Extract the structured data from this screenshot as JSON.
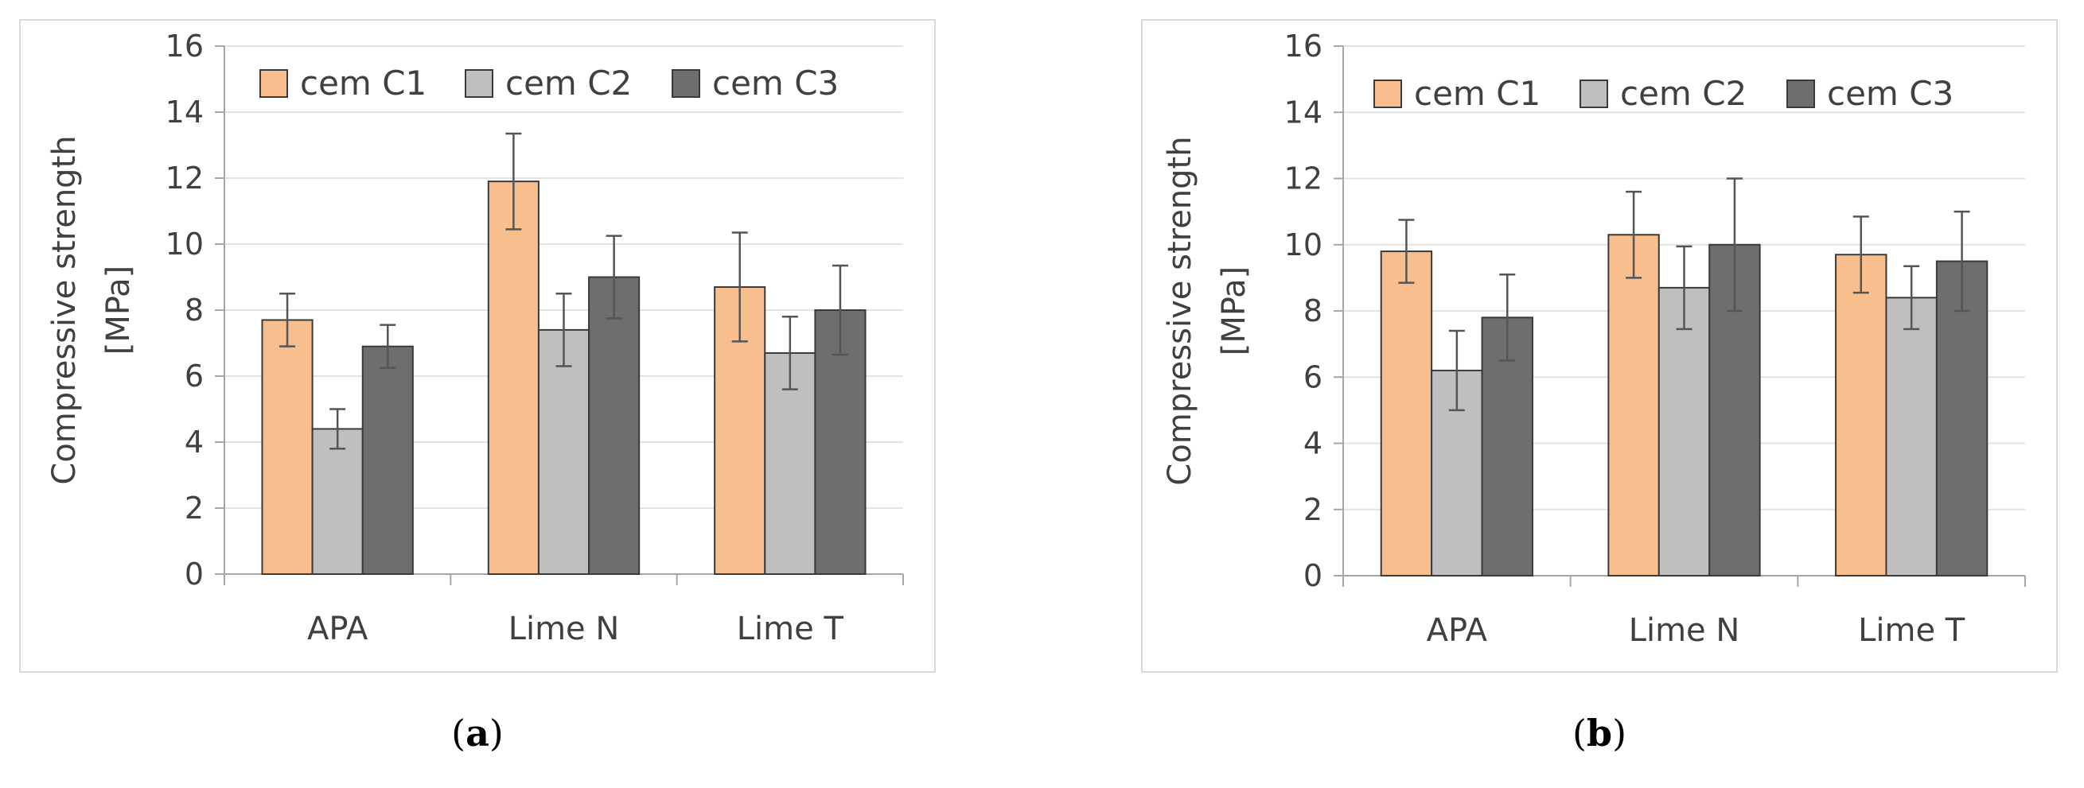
{
  "chart_data": [
    {
      "type": "bar",
      "panel_caption": "a",
      "title": "",
      "xlabel": "",
      "ylabel": "Compressive strength",
      "ylabel_unit": "[MPa]",
      "ylim": [
        0,
        16
      ],
      "yticks": [
        "0",
        "2",
        "4",
        "6",
        "8",
        "10",
        "12",
        "14",
        "16"
      ],
      "categories": [
        "APA",
        "Lime N",
        "Lime T"
      ],
      "legend_position": "top",
      "grid": true,
      "series": [
        {
          "name": "cem C1",
          "color": "#f9be8e",
          "values": [
            7.7,
            11.9,
            8.7
          ],
          "errors": [
            0.8,
            1.45,
            1.65
          ]
        },
        {
          "name": "cem C2",
          "color": "#bfbfbf",
          "values": [
            4.4,
            7.4,
            6.7
          ],
          "errors": [
            0.6,
            1.1,
            1.1
          ]
        },
        {
          "name": "cem C3",
          "color": "#6e6e6e",
          "values": [
            6.9,
            9.0,
            8.0
          ],
          "errors": [
            0.65,
            1.25,
            1.35
          ]
        }
      ]
    },
    {
      "type": "bar",
      "panel_caption": "b",
      "title": "",
      "xlabel": "",
      "ylabel": "Compressive strength",
      "ylabel_unit": "[MPa]",
      "ylim": [
        0,
        16
      ],
      "yticks": [
        "0",
        "2",
        "4",
        "6",
        "8",
        "10",
        "12",
        "14",
        "16"
      ],
      "categories": [
        "APA",
        "Lime N",
        "Lime T"
      ],
      "legend_position": "top",
      "grid": true,
      "series": [
        {
          "name": "cem C1",
          "color": "#f9be8e",
          "values": [
            9.8,
            10.3,
            9.7
          ],
          "errors": [
            0.95,
            1.3,
            1.15
          ]
        },
        {
          "name": "cem C2",
          "color": "#bfbfbf",
          "values": [
            6.2,
            8.7,
            8.4
          ],
          "errors": [
            1.2,
            1.25,
            0.95
          ]
        },
        {
          "name": "cem C3",
          "color": "#6e6e6e",
          "values": [
            7.8,
            10.0,
            9.5
          ],
          "errors": [
            1.3,
            2.0,
            1.5
          ]
        }
      ]
    }
  ]
}
